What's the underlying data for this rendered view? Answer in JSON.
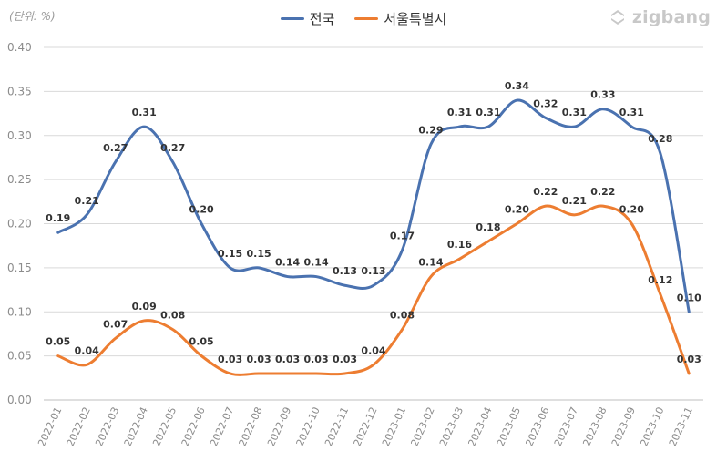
{
  "unit_label": "(단위: %)",
  "brand": {
    "name": "zigbang",
    "icon": "zigbang-logo-icon"
  },
  "colors": {
    "national": "#4a72b0",
    "seoul": "#ed7d31",
    "grid": "#d9d9d9",
    "axis_text": "#8c8c8c",
    "label_text": "#333333"
  },
  "chart_data": {
    "type": "line",
    "title": "",
    "xlabel": "",
    "ylabel": "",
    "ylim": [
      0,
      0.4
    ],
    "yticks": [
      "0.00",
      "0.05",
      "0.10",
      "0.15",
      "0.20",
      "0.25",
      "0.30",
      "0.35",
      "0.40"
    ],
    "grid": true,
    "legend_position": "top-center",
    "categories": [
      "2022-01",
      "2022-02",
      "2022-03",
      "2022-04",
      "2022-05",
      "2022-06",
      "2022-07",
      "2022-08",
      "2022-09",
      "2022-10",
      "2022-11",
      "2022-12",
      "2023-01",
      "2023-02",
      "2023-03",
      "2023-04",
      "2023-05",
      "2023-06",
      "2023-07",
      "2023-08",
      "2023-09",
      "2023-10",
      "2023-11"
    ],
    "series": [
      {
        "name": "전국",
        "color": "#4a72b0",
        "values": [
          0.19,
          0.21,
          0.27,
          0.31,
          0.27,
          0.2,
          0.15,
          0.15,
          0.14,
          0.14,
          0.13,
          0.13,
          0.17,
          0.29,
          0.31,
          0.31,
          0.34,
          0.32,
          0.31,
          0.33,
          0.31,
          0.28,
          0.1
        ],
        "labels": [
          "0.19",
          "0.21",
          "0.27",
          "0.31",
          "0.27",
          "0.20",
          "0.15",
          "0.15",
          "0.14",
          "0.14",
          "0.13",
          "0.13",
          "0.17",
          "0.29",
          "0.31",
          "0.31",
          "0.34",
          "0.32",
          "0.31",
          "0.33",
          "0.31",
          "0.28",
          "0.10"
        ]
      },
      {
        "name": "서울특별시",
        "color": "#ed7d31",
        "values": [
          0.05,
          0.04,
          0.07,
          0.09,
          0.08,
          0.05,
          0.03,
          0.03,
          0.03,
          0.03,
          0.03,
          0.04,
          0.08,
          0.14,
          0.16,
          0.18,
          0.2,
          0.22,
          0.21,
          0.22,
          0.2,
          0.12,
          0.03
        ],
        "labels": [
          "0.05",
          "0.04",
          "0.07",
          "0.09",
          "0.08",
          "0.05",
          "0.03",
          "0.03",
          "0.03",
          "0.03",
          "0.03",
          "0.04",
          "0.08",
          "0.14",
          "0.16",
          "0.18",
          "0.20",
          "0.22",
          "0.21",
          "0.22",
          "0.20",
          "0.12",
          "0.03"
        ]
      }
    ]
  }
}
